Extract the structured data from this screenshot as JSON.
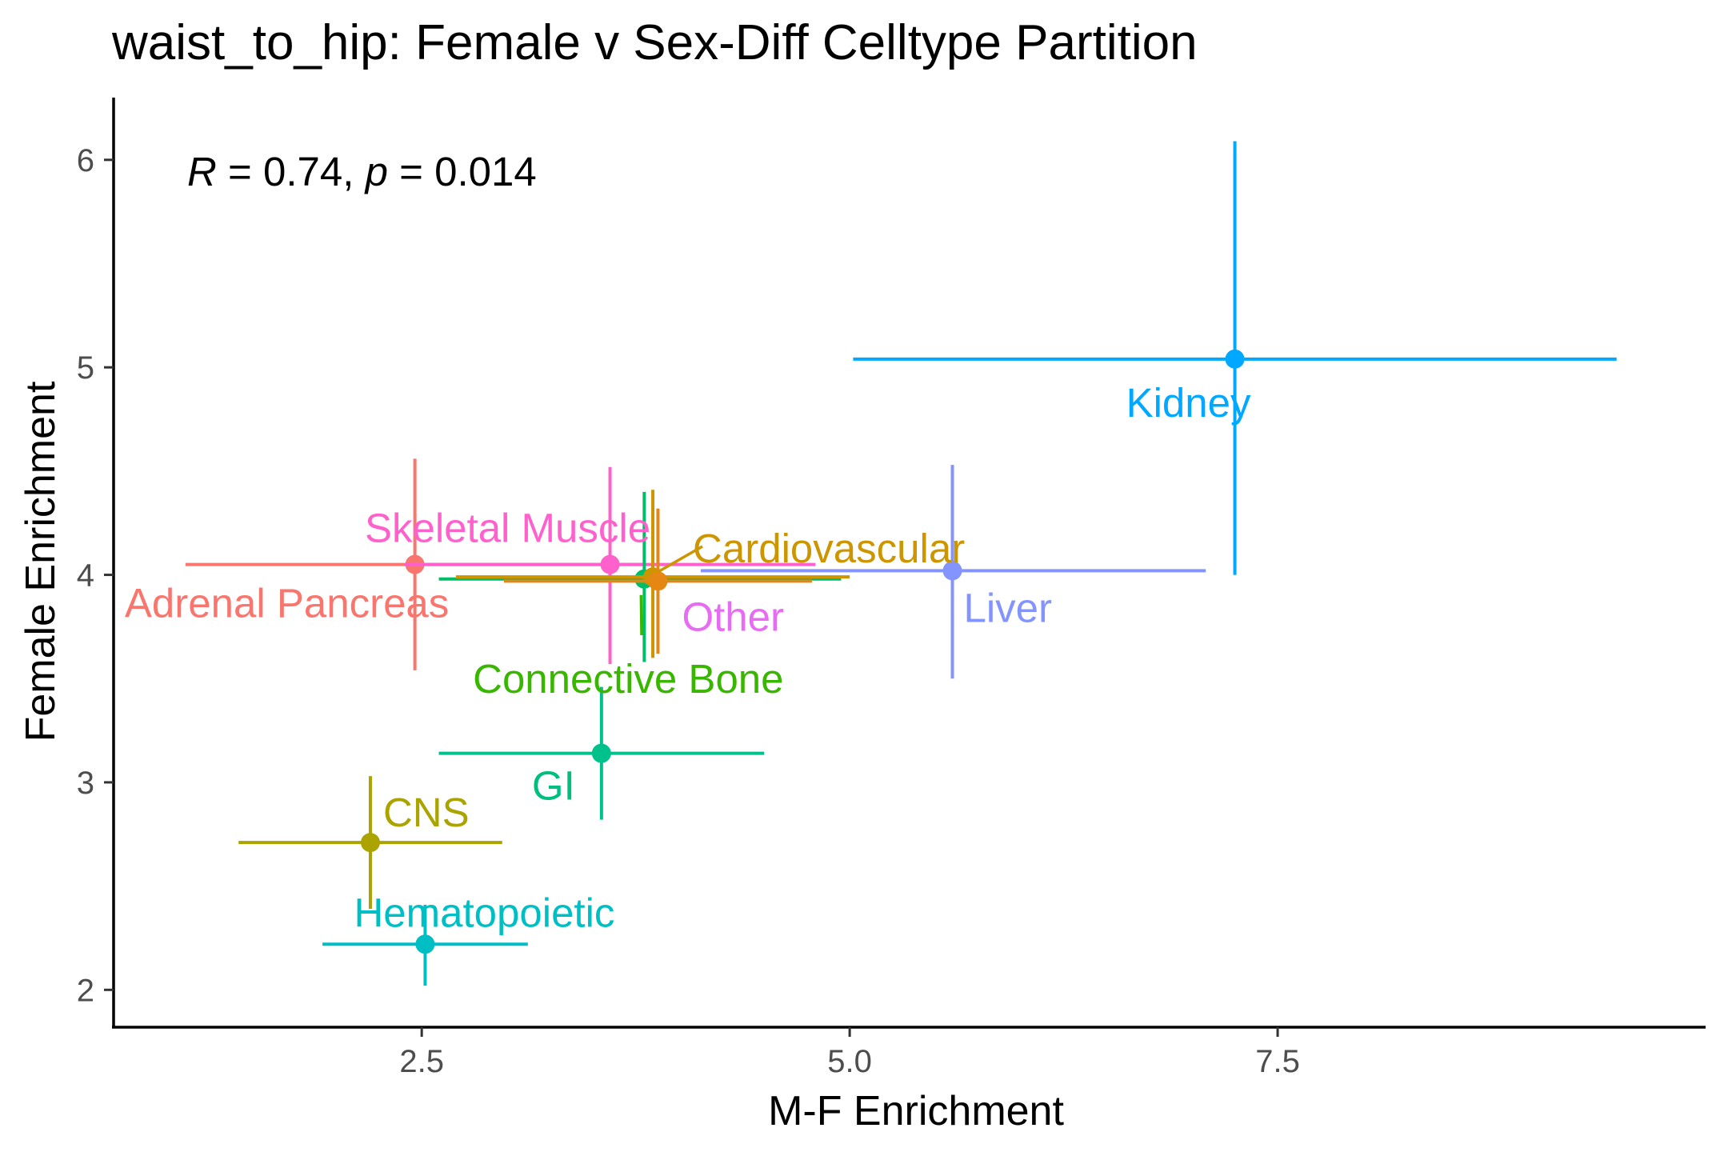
{
  "chart_data": {
    "type": "scatter",
    "title": "waist_to_hip: Female v Sex-Diff Celltype Partition",
    "xlabel": "M-F Enrichment",
    "ylabel": "Female Enrichment",
    "xlim": [
      0.7,
      10.0
    ],
    "ylim": [
      1.82,
      6.3
    ],
    "x_ticks": [
      2.5,
      5.0,
      7.5
    ],
    "x_tick_labels": [
      "2.5",
      "5.0",
      "7.5"
    ],
    "y_ticks": [
      2,
      3,
      4,
      5,
      6
    ],
    "y_tick_labels": [
      "2",
      "3",
      "4",
      "5",
      "6"
    ],
    "grid": false,
    "legend": "none",
    "annotation": {
      "r_symbol": "R",
      "r_text": " = 0.74, ",
      "p_symbol": "p",
      "p_text": " = 0.014"
    },
    "points": [
      {
        "label": "Kidney",
        "x": 7.25,
        "y": 5.04,
        "x_low": 5.02,
        "x_high": 9.48,
        "y_low": 4.0,
        "y_high": 6.09,
        "color": "#00A9FF"
      },
      {
        "label": "Skeletal Muscle",
        "x": 3.6,
        "y": 4.05,
        "x_low": 2.4,
        "x_high": 4.8,
        "y_low": 3.57,
        "y_high": 4.52,
        "color": "#FF61CC"
      },
      {
        "label": "Cardiovascular",
        "x": 3.85,
        "y": 3.99,
        "x_low": 2.7,
        "x_high": 5.0,
        "y_low": 3.6,
        "y_high": 4.41,
        "color": "#CD9600"
      },
      {
        "label": "Adrenal Pancreas",
        "x": 2.46,
        "y": 4.05,
        "x_low": 1.12,
        "x_high": 3.8,
        "y_low": 3.54,
        "y_high": 4.56,
        "color": "#F8766D"
      },
      {
        "label": "Other",
        "x": 3.88,
        "y": 3.97,
        "x_low": 2.98,
        "x_high": 4.78,
        "y_low": 3.62,
        "y_high": 4.32,
        "color": "#E68613"
      },
      {
        "label": "Liver",
        "x": 5.6,
        "y": 4.02,
        "x_low": 4.13,
        "x_high": 7.08,
        "y_low": 3.5,
        "y_high": 4.53,
        "color": "#8494FF"
      },
      {
        "label": "Connective Bone",
        "x": 3.8,
        "y": 3.98,
        "x_low": 2.6,
        "x_high": 4.95,
        "y_low": 3.58,
        "y_high": 4.4,
        "color": "#00BE67"
      },
      {
        "label": "GI",
        "x": 3.55,
        "y": 3.14,
        "x_low": 2.6,
        "x_high": 4.5,
        "y_low": 2.82,
        "y_high": 3.46,
        "color": "#00C08B"
      },
      {
        "label": "CNS",
        "x": 2.2,
        "y": 2.71,
        "x_low": 1.43,
        "x_high": 2.97,
        "y_low": 2.39,
        "y_high": 3.03,
        "color": "#ABA300"
      },
      {
        "label": "Hematopoietic",
        "x": 2.52,
        "y": 2.22,
        "x_low": 1.92,
        "x_high": 3.12,
        "y_low": 2.02,
        "y_high": 2.41,
        "color": "#00BFC4"
      }
    ],
    "label_colors": {
      "Other": "#E76BF3",
      "Connective Bone": "#39B600",
      "GI": "#00BF7D"
    }
  }
}
